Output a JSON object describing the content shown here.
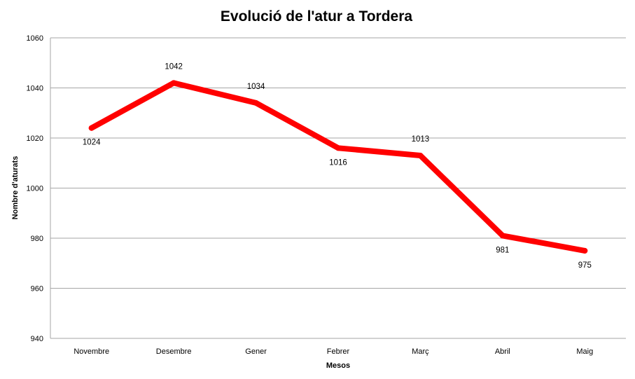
{
  "chart_data": {
    "type": "line",
    "title": "Evolució de l'atur a Tordera",
    "xlabel": "Mesos",
    "ylabel": "Nombre d'aturats",
    "categories": [
      "Novembre",
      "Desembre",
      "Gener",
      "Febrer",
      "Març",
      "Abril",
      "Maig"
    ],
    "series": [
      {
        "values": [
          1024,
          1042,
          1034,
          1016,
          1013,
          981,
          975
        ],
        "color": "#ff0000",
        "data_labels": [
          "1024",
          "1042",
          "1034",
          "1016",
          "1013",
          "981",
          "975"
        ],
        "data_label_side": [
          "below",
          "above",
          "above",
          "below",
          "above",
          "below",
          "below"
        ]
      }
    ],
    "ylim": [
      940,
      1060
    ],
    "yticks": [
      940,
      960,
      980,
      1000,
      1020,
      1040,
      1060
    ],
    "ytick_labels": [
      "940",
      "960",
      "980",
      "1000",
      "1020",
      "1040",
      "1060"
    ],
    "grid": true,
    "legend": "none",
    "colors": {
      "line": "#ff0000",
      "grid": "#a6a6a6",
      "text": "#000000"
    }
  }
}
